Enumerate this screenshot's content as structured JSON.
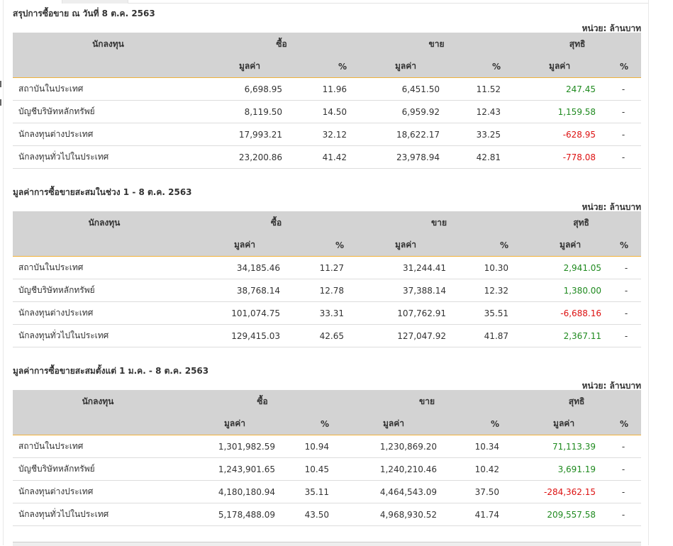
{
  "unit_label": "หน่วย: ล้านบาท",
  "headers": {
    "investor": "นักลงทุน",
    "buy": "ซื้อ",
    "sell": "ขาย",
    "net": "สุทธิ",
    "value": "มูลค่า",
    "percent": "%"
  },
  "colors": {
    "positive": "#1f8a1f",
    "negative": "#dd1111",
    "header_bg": "#d3d3d3",
    "accent_border": "#f0b13a"
  },
  "sections": [
    {
      "title": "สรุปการซื้อขาย ณ วันที่ 8 ต.ค. 2563",
      "rows": [
        {
          "name": "สถาบันในประเทศ",
          "buy_value": "6,698.95",
          "buy_pct": "11.96",
          "sell_value": "6,451.50",
          "sell_pct": "11.52",
          "net_value": "247.45",
          "net_sign": "pos",
          "net_pct": "-"
        },
        {
          "name": "บัญชีบริษัทหลักทรัพย์",
          "buy_value": "8,119.50",
          "buy_pct": "14.50",
          "sell_value": "6,959.92",
          "sell_pct": "12.43",
          "net_value": "1,159.58",
          "net_sign": "pos",
          "net_pct": "-"
        },
        {
          "name": "นักลงทุนต่างประเทศ",
          "buy_value": "17,993.21",
          "buy_pct": "32.12",
          "sell_value": "18,622.17",
          "sell_pct": "33.25",
          "net_value": "-628.95",
          "net_sign": "neg",
          "net_pct": "-"
        },
        {
          "name": "นักลงทุนทั่วไปในประเทศ",
          "buy_value": "23,200.86",
          "buy_pct": "41.42",
          "sell_value": "23,978.94",
          "sell_pct": "42.81",
          "net_value": "-778.08",
          "net_sign": "neg",
          "net_pct": "-"
        }
      ]
    },
    {
      "title": "มูลค่าการซื้อขายสะสมในช่วง 1 - 8 ต.ค. 2563",
      "rows": [
        {
          "name": "สถาบันในประเทศ",
          "buy_value": "34,185.46",
          "buy_pct": "11.27",
          "sell_value": "31,244.41",
          "sell_pct": "10.30",
          "net_value": "2,941.05",
          "net_sign": "pos",
          "net_pct": "-"
        },
        {
          "name": "บัญชีบริษัทหลักทรัพย์",
          "buy_value": "38,768.14",
          "buy_pct": "12.78",
          "sell_value": "37,388.14",
          "sell_pct": "12.32",
          "net_value": "1,380.00",
          "net_sign": "pos",
          "net_pct": "-"
        },
        {
          "name": "นักลงทุนต่างประเทศ",
          "buy_value": "101,074.75",
          "buy_pct": "33.31",
          "sell_value": "107,762.91",
          "sell_pct": "35.51",
          "net_value": "-6,688.16",
          "net_sign": "neg",
          "net_pct": "-"
        },
        {
          "name": "นักลงทุนทั่วไปในประเทศ",
          "buy_value": "129,415.03",
          "buy_pct": "42.65",
          "sell_value": "127,047.92",
          "sell_pct": "41.87",
          "net_value": "2,367.11",
          "net_sign": "pos",
          "net_pct": "-"
        }
      ]
    },
    {
      "title": "มูลค่าการซื้อขายสะสมตั้งแต่ 1 ม.ค. - 8 ต.ค. 2563",
      "rows": [
        {
          "name": "สถาบันในประเทศ",
          "buy_value": "1,301,982.59",
          "buy_pct": "10.94",
          "sell_value": "1,230,869.20",
          "sell_pct": "10.34",
          "net_value": "71,113.39",
          "net_sign": "pos",
          "net_pct": "-"
        },
        {
          "name": "บัญชีบริษัทหลักทรัพย์",
          "buy_value": "1,243,901.65",
          "buy_pct": "10.45",
          "sell_value": "1,240,210.46",
          "sell_pct": "10.42",
          "net_value": "3,691.19",
          "net_sign": "pos",
          "net_pct": "-"
        },
        {
          "name": "นักลงทุนต่างประเทศ",
          "buy_value": "4,180,180.94",
          "buy_pct": "35.11",
          "sell_value": "4,464,543.09",
          "sell_pct": "37.50",
          "net_value": "-284,362.15",
          "net_sign": "neg",
          "net_pct": "-"
        },
        {
          "name": "นักลงทุนทั่วไปในประเทศ",
          "buy_value": "5,178,488.09",
          "buy_pct": "43.50",
          "sell_value": "4,968,930.52",
          "sell_pct": "41.74",
          "net_value": "209,557.58",
          "net_sign": "pos",
          "net_pct": "-"
        }
      ]
    }
  ]
}
